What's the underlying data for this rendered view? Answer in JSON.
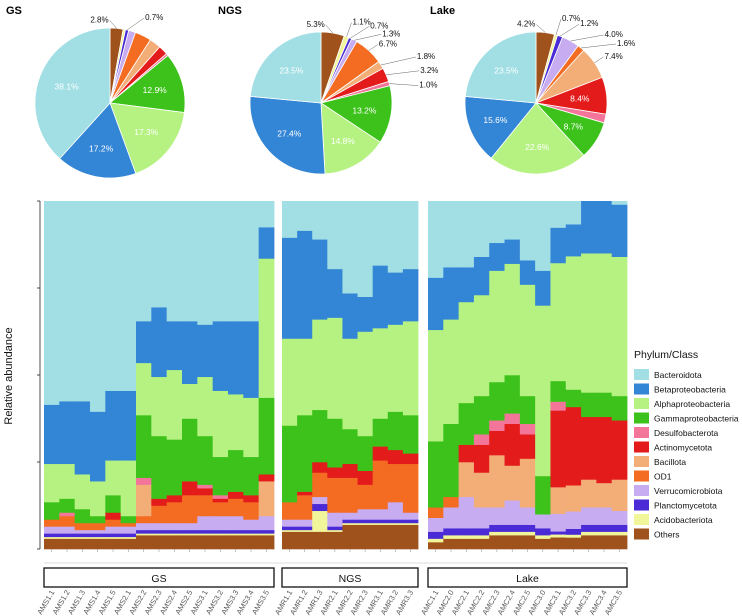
{
  "chart_data": {
    "type": "bar",
    "ylabel": "Relative abundance",
    "legend_title": "Phylum/Class",
    "phyla": [
      {
        "name": "Others",
        "color": "#a0521d"
      },
      {
        "name": "Acidobacteriota",
        "color": "#f2f69a"
      },
      {
        "name": "Planctomycetota",
        "color": "#4a2bd6"
      },
      {
        "name": "Verrucomicrobiota",
        "color": "#c7acf2"
      },
      {
        "name": "OD1",
        "color": "#f36c21"
      },
      {
        "name": "Bacillota",
        "color": "#f3ae78"
      },
      {
        "name": "Actinomycetota",
        "color": "#e31b1b"
      },
      {
        "name": "Desulfobacterota",
        "color": "#f4759a"
      },
      {
        "name": "Gammaproteobacteria",
        "color": "#3cc21a"
      },
      {
        "name": "Alphaproteobacteria",
        "color": "#b5f281"
      },
      {
        "name": "Betaproteobacteria",
        "color": "#3385d6"
      },
      {
        "name": "Bacteroidota",
        "color": "#a1dfe4"
      }
    ],
    "legend_order": [
      "Bacteroidota",
      "Betaproteobacteria",
      "Alphaproteobacteria",
      "Gammaproteobacteria",
      "Desulfobacterota",
      "Actinomycetota",
      "Bacillota",
      "OD1",
      "Verrucomicrobiota",
      "Planctomycetota",
      "Acidobacteriota",
      "Others"
    ],
    "pies": [
      {
        "title": "GS",
        "slices": [
          {
            "phylum": "Others",
            "value": 2.8,
            "label": "2.8%"
          },
          {
            "phylum": "Acidobacteriota",
            "value": 0.5,
            "label": ""
          },
          {
            "phylum": "Planctomycetota",
            "value": 0.7,
            "label": "0.7%"
          },
          {
            "phylum": "Verrucomicrobiota",
            "value": 1.5,
            "label": ""
          },
          {
            "phylum": "OD1",
            "value": 3.5,
            "label": ""
          },
          {
            "phylum": "Bacillota",
            "value": 2.5,
            "label": ""
          },
          {
            "phylum": "Actinomycetota",
            "value": 2.0,
            "label": ""
          },
          {
            "phylum": "Desulfobacterota",
            "value": 0.5,
            "label": ""
          },
          {
            "phylum": "Gammaproteobacteria",
            "value": 12.9,
            "label": "12.9%"
          },
          {
            "phylum": "Alphaproteobacteria",
            "value": 17.3,
            "label": "17.3%"
          },
          {
            "phylum": "Betaproteobacteria",
            "value": 17.2,
            "label": "17.2%"
          },
          {
            "phylum": "Bacteroidota",
            "value": 38.1,
            "label": "38.1%"
          }
        ]
      },
      {
        "title": "NGS",
        "slices": [
          {
            "phylum": "Others",
            "value": 5.3,
            "label": "5.3%"
          },
          {
            "phylum": "Acidobacteriota",
            "value": 1.1,
            "label": "1.1%"
          },
          {
            "phylum": "Planctomycetota",
            "value": 0.7,
            "label": "0.7%"
          },
          {
            "phylum": "Verrucomicrobiota",
            "value": 1.3,
            "label": "1.3%"
          },
          {
            "phylum": "OD1",
            "value": 6.7,
            "label": "6.7%"
          },
          {
            "phylum": "Bacillota",
            "value": 1.8,
            "label": "1.8%"
          },
          {
            "phylum": "Actinomycetota",
            "value": 3.2,
            "label": "3.2%"
          },
          {
            "phylum": "Desulfobacterota",
            "value": 1.0,
            "label": "1.0%"
          },
          {
            "phylum": "Gammaproteobacteria",
            "value": 13.2,
            "label": "13.2%"
          },
          {
            "phylum": "Alphaproteobacteria",
            "value": 14.8,
            "label": "14.8%"
          },
          {
            "phylum": "Betaproteobacteria",
            "value": 27.4,
            "label": "27.4%"
          },
          {
            "phylum": "Bacteroidota",
            "value": 23.5,
            "label": "23.5%"
          }
        ]
      },
      {
        "title": "Lake",
        "slices": [
          {
            "phylum": "Others",
            "value": 4.2,
            "label": "4.2%"
          },
          {
            "phylum": "Acidobacteriota",
            "value": 0.7,
            "label": "0.7%"
          },
          {
            "phylum": "Planctomycetota",
            "value": 1.2,
            "label": "1.2%"
          },
          {
            "phylum": "Verrucomicrobiota",
            "value": 4.0,
            "label": "4.0%"
          },
          {
            "phylum": "OD1",
            "value": 1.6,
            "label": "1.6%"
          },
          {
            "phylum": "Bacillota",
            "value": 7.4,
            "label": "7.4%"
          },
          {
            "phylum": "Actinomycetota",
            "value": 8.4,
            "label": "8.4%"
          },
          {
            "phylum": "Desulfobacterota",
            "value": 2.0,
            "label": ""
          },
          {
            "phylum": "Gammaproteobacteria",
            "value": 8.7,
            "label": "8.7%"
          },
          {
            "phylum": "Alphaproteobacteria",
            "value": 22.6,
            "label": "22.6%"
          },
          {
            "phylum": "Betaproteobacteria",
            "value": 15.6,
            "label": "15.6%"
          },
          {
            "phylum": "Bacteroidota",
            "value": 23.5,
            "label": "23.5%"
          }
        ]
      }
    ],
    "groups": [
      {
        "name": "GS",
        "samples": [
          "AMS1.1",
          "AMS1.2",
          "AMS1.3",
          "AMS1.4",
          "AMS1.5",
          "AMS2.1",
          "AMS2.2",
          "AMS2.3",
          "AMS2.4",
          "AMS2.5",
          "AMS3.1",
          "AMS3.2",
          "AMS3.3",
          "AMS3.4",
          "AMS3.5"
        ],
        "values": [
          [
            3,
            0.5,
            1,
            2,
            2,
            0,
            0,
            0,
            5,
            11,
            17,
            58.5
          ],
          [
            3,
            0.5,
            1,
            2,
            3,
            0,
            0,
            1,
            4,
            10,
            18,
            57.5
          ],
          [
            3,
            0.5,
            1,
            1,
            2,
            0,
            0,
            0,
            4,
            10,
            21,
            57.5
          ],
          [
            3,
            0.5,
            1,
            1,
            2,
            0,
            0,
            0,
            2,
            10,
            20,
            60.5
          ],
          [
            3,
            0.5,
            1,
            2,
            2,
            0,
            2,
            0,
            5,
            10,
            20,
            54.5
          ],
          [
            3,
            0.5,
            1,
            2,
            1,
            0,
            0,
            0,
            2,
            16,
            20,
            54.5
          ],
          [
            4,
            0.5,
            1,
            2,
            2,
            9,
            0,
            2,
            18,
            15,
            12,
            34.5
          ],
          [
            4,
            0.5,
            1,
            2,
            5,
            0,
            2,
            0,
            18,
            17,
            20,
            30.5
          ],
          [
            4,
            0.5,
            1,
            2,
            6,
            0,
            2,
            0,
            16,
            20,
            14,
            34.5
          ],
          [
            4,
            0.5,
            1,
            2,
            8,
            0,
            4,
            0,
            18,
            10,
            18,
            34.5
          ],
          [
            4,
            0.5,
            1,
            4,
            6,
            0,
            2,
            1,
            14,
            17,
            15,
            35.5
          ],
          [
            4,
            0.5,
            1,
            4,
            4,
            0,
            1,
            1,
            11,
            19,
            20,
            34.5
          ],
          [
            4,
            0.5,
            1,
            4,
            5,
            0,
            2,
            0,
            12,
            16,
            21,
            34.5
          ],
          [
            4,
            0.5,
            1,
            3,
            5,
            0,
            2,
            0,
            11,
            17,
            22,
            34.5
          ],
          [
            4,
            0.5,
            1,
            4,
            0,
            10,
            2,
            0,
            22,
            40,
            9,
            7.5
          ]
        ]
      },
      {
        "name": "NGS",
        "samples": [
          "AMR1.1",
          "AMR1.2",
          "AMR1.3",
          "AMR2.1",
          "AMR2.2",
          "AMR2.3",
          "AMR3.1",
          "AMR3.2",
          "AMR3.3"
        ],
        "values": [
          [
            5,
            0.5,
            1,
            2,
            5,
            0,
            0,
            0,
            22,
            25,
            29,
            10.5
          ],
          [
            5,
            0.5,
            1,
            2,
            7,
            0,
            1,
            0,
            22,
            22,
            31,
            8.5
          ],
          [
            5,
            6,
            2,
            2,
            7,
            0,
            3,
            0,
            15,
            26,
            23,
            11
          ],
          [
            5,
            0.5,
            1,
            4,
            10,
            0,
            3,
            0,
            14,
            29,
            14,
            19.5
          ],
          [
            7,
            0.5,
            1,
            2,
            10,
            0,
            4,
            0,
            10,
            26,
            13,
            26.5
          ],
          [
            7,
            0.5,
            1,
            3,
            7,
            0,
            4,
            0,
            10,
            30,
            10,
            27.5
          ],
          [
            7,
            0.5,
            1,
            3,
            14,
            0,
            4,
            0,
            8,
            26,
            18,
            18.5
          ],
          [
            7,
            0.5,
            1,
            5,
            11,
            0,
            4,
            0,
            11,
            25,
            15,
            20.5
          ],
          [
            7,
            0.5,
            1,
            2,
            14,
            0,
            3,
            0,
            11,
            27,
            15,
            19.5
          ]
        ]
      },
      {
        "name": "Lake",
        "samples": [
          "AMC1.1",
          "AMC2.0",
          "AMC2.1",
          "AMC2.2",
          "AMC2.3",
          "AMC2.4",
          "AMC2.5",
          "AMC3.0",
          "AMC3.1",
          "AMC3.2",
          "AMC3.3",
          "AMC3.4",
          "AMC3.5"
        ],
        "values": [
          [
            2,
            1,
            2,
            4,
            3,
            0,
            0,
            0,
            19,
            32,
            15,
            22
          ],
          [
            3,
            1,
            2,
            6,
            3,
            0,
            0,
            0,
            21,
            30,
            15,
            19
          ],
          [
            3,
            1,
            2,
            9,
            0,
            10,
            5,
            0,
            12,
            29,
            10,
            19
          ],
          [
            3,
            1,
            2,
            6,
            0,
            10,
            8,
            3,
            11,
            29,
            11,
            16
          ],
          [
            4,
            1,
            2,
            5,
            0,
            15,
            7,
            3,
            11,
            32,
            8,
            12
          ],
          [
            4,
            1,
            2,
            7,
            0,
            10,
            12,
            3,
            11,
            32,
            7,
            11
          ],
          [
            4,
            1,
            2,
            5,
            0,
            14,
            7,
            3,
            8,
            32,
            7,
            17
          ],
          [
            3,
            1,
            2,
            4,
            0,
            0,
            0,
            0,
            11,
            49,
            10,
            20
          ],
          [
            4,
            1,
            1,
            6,
            0,
            9,
            26,
            3,
            7,
            40,
            12,
            9
          ],
          [
            4,
            1,
            2,
            6,
            0,
            9,
            27,
            0,
            6,
            46,
            11,
            8
          ],
          [
            4,
            1,
            2,
            5,
            0,
            8,
            18,
            0,
            7,
            40,
            15,
            0
          ],
          [
            4,
            1,
            2,
            5,
            0,
            7,
            19,
            0,
            7,
            40,
            15,
            0
          ],
          [
            4,
            1,
            2,
            4,
            0,
            9,
            17,
            0,
            7,
            40,
            15,
            1
          ]
        ]
      }
    ]
  }
}
